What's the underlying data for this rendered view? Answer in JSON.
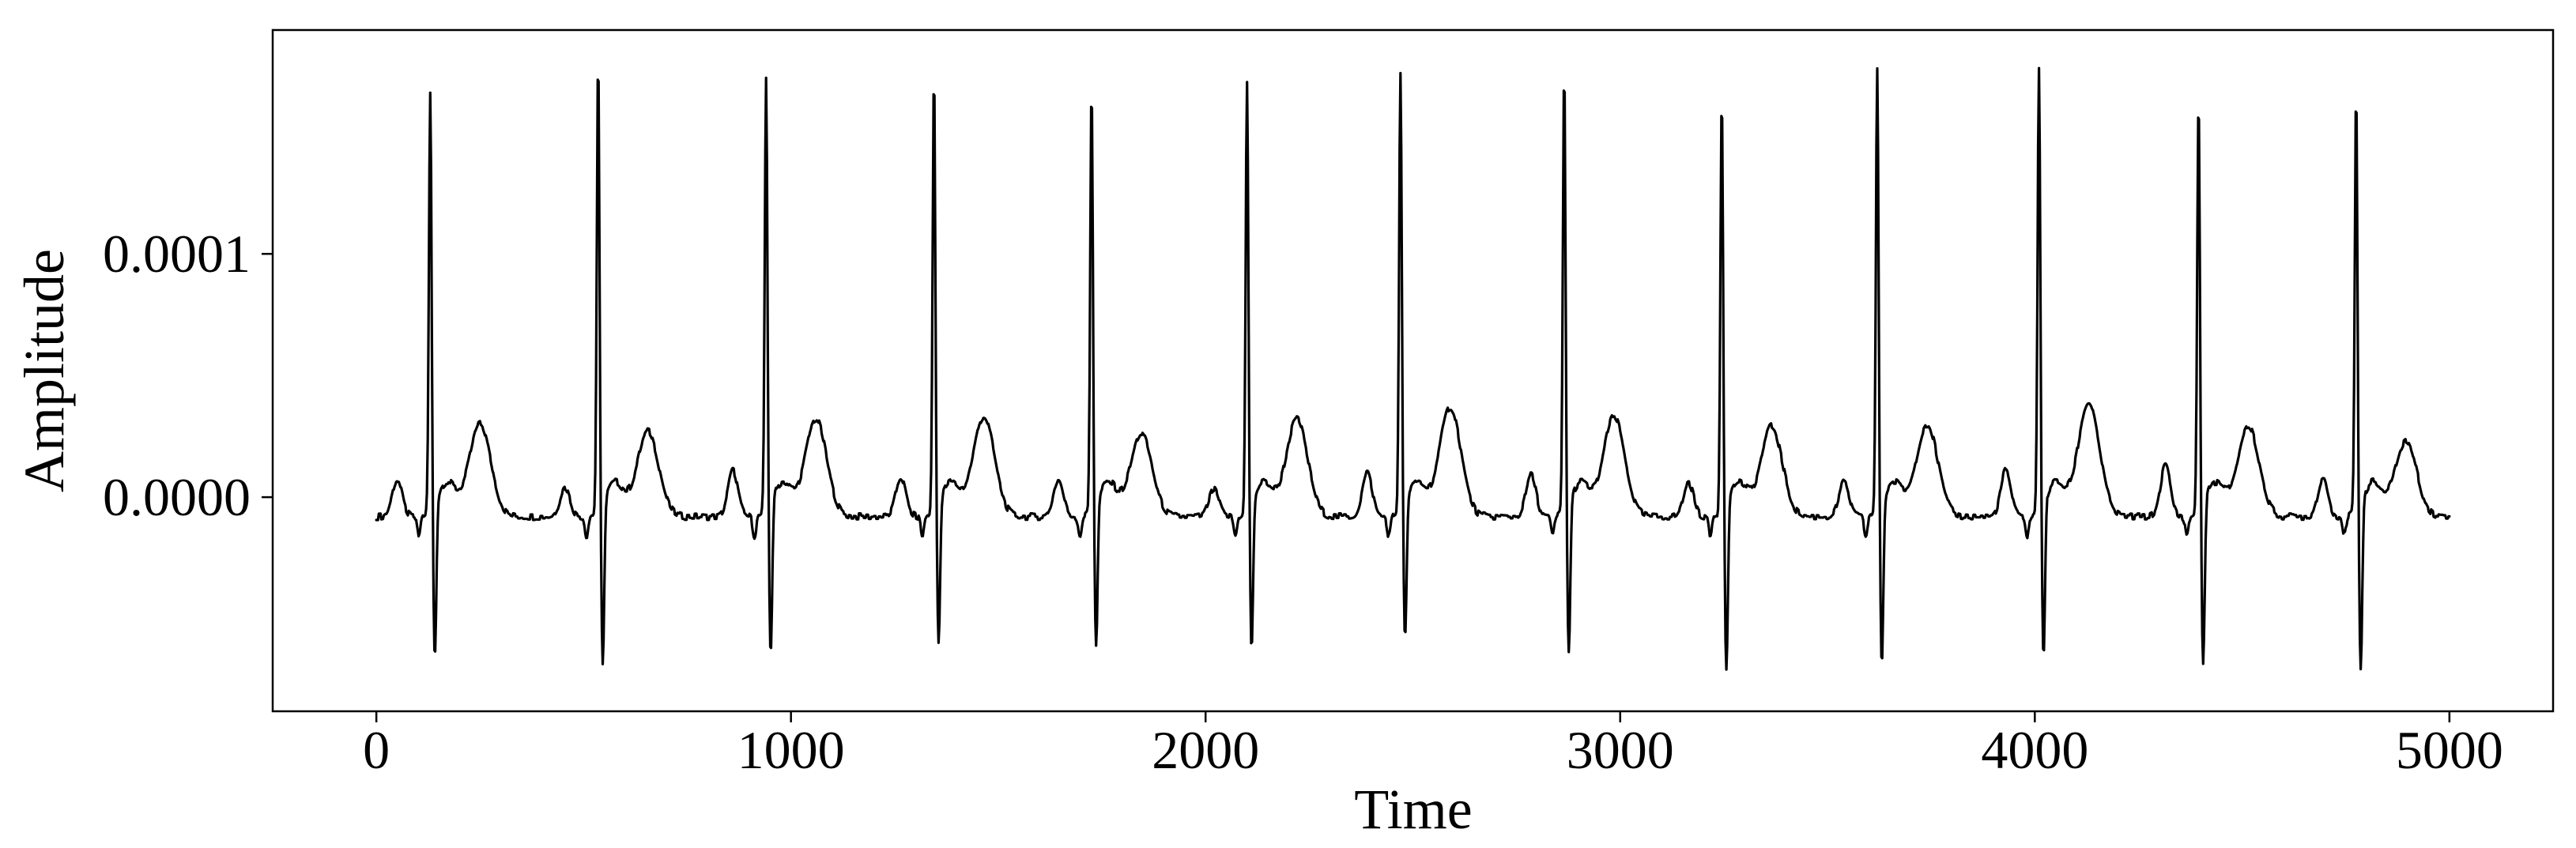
{
  "chart_data": {
    "type": "line",
    "title": "",
    "xlabel": "Time",
    "ylabel": "Amplitude",
    "xlim": [
      -250,
      5250
    ],
    "ylim": [
      -8.8e-05,
      0.000192
    ],
    "xticks": [
      0,
      1000,
      2000,
      3000,
      4000,
      5000
    ],
    "xtick_labels": [
      "0",
      "1000",
      "2000",
      "3000",
      "4000",
      "5000"
    ],
    "yticks": [
      0.0,
      0.0001
    ],
    "ytick_labels": [
      "0.0000",
      "0.0001"
    ],
    "grid": false,
    "legend": "none",
    "series": [
      {
        "color": "#000000",
        "x_start": 0,
        "x_end": 5000,
        "baseline": -8e-06,
        "beats": [
          {
            "r_time": 130,
            "r_peak": 0.000164,
            "s_trough": -7.2e-05,
            "t_peak": 3e-05,
            "p_peak": 7e-06
          },
          {
            "r_time": 535,
            "r_peak": 0.000177,
            "s_trough": -7.4e-05,
            "t_peak": 2.7e-05,
            "p_peak": 4e-06
          },
          {
            "r_time": 940,
            "r_peak": 0.000169,
            "s_trough": -7e-05,
            "t_peak": 3.2e-05,
            "p_peak": 1.1e-05
          },
          {
            "r_time": 1345,
            "r_peak": 0.000172,
            "s_trough": -6.5e-05,
            "t_peak": 3.3e-05,
            "p_peak": 8e-06
          },
          {
            "r_time": 1725,
            "r_peak": 0.000167,
            "s_trough": -6.7e-05,
            "t_peak": 2.6e-05,
            "p_peak": 7e-06
          },
          {
            "r_time": 2100,
            "r_peak": 0.000168,
            "s_trough": -6.9e-05,
            "t_peak": 3.2e-05,
            "p_peak": 3e-06
          },
          {
            "r_time": 2470,
            "r_peak": 0.000173,
            "s_trough": -6.5e-05,
            "t_peak": 3.7e-05,
            "p_peak": 1e-05
          },
          {
            "r_time": 2865,
            "r_peak": 0.000173,
            "s_trough": -7e-05,
            "t_peak": 3.3e-05,
            "p_peak": 9e-06
          },
          {
            "r_time": 3245,
            "r_peak": 0.000163,
            "s_trough": -7.6e-05,
            "t_peak": 2.9e-05,
            "p_peak": 6e-06
          },
          {
            "r_time": 3620,
            "r_peak": 0.000173,
            "s_trough": -7.5e-05,
            "t_peak": 3e-05,
            "p_peak": 6e-06
          },
          {
            "r_time": 4010,
            "r_peak": 0.000174,
            "s_trough": -7.1e-05,
            "t_peak": 3.9e-05,
            "p_peak": 1.1e-05
          },
          {
            "r_time": 4395,
            "r_peak": 0.000162,
            "s_trough": -7.6e-05,
            "t_peak": 2.9e-05,
            "p_peak": 1.3e-05
          },
          {
            "r_time": 4775,
            "r_peak": 0.000164,
            "s_trough": -7.6e-05,
            "t_peak": 2.3e-05,
            "p_peak": 8e-06
          }
        ]
      }
    ]
  }
}
